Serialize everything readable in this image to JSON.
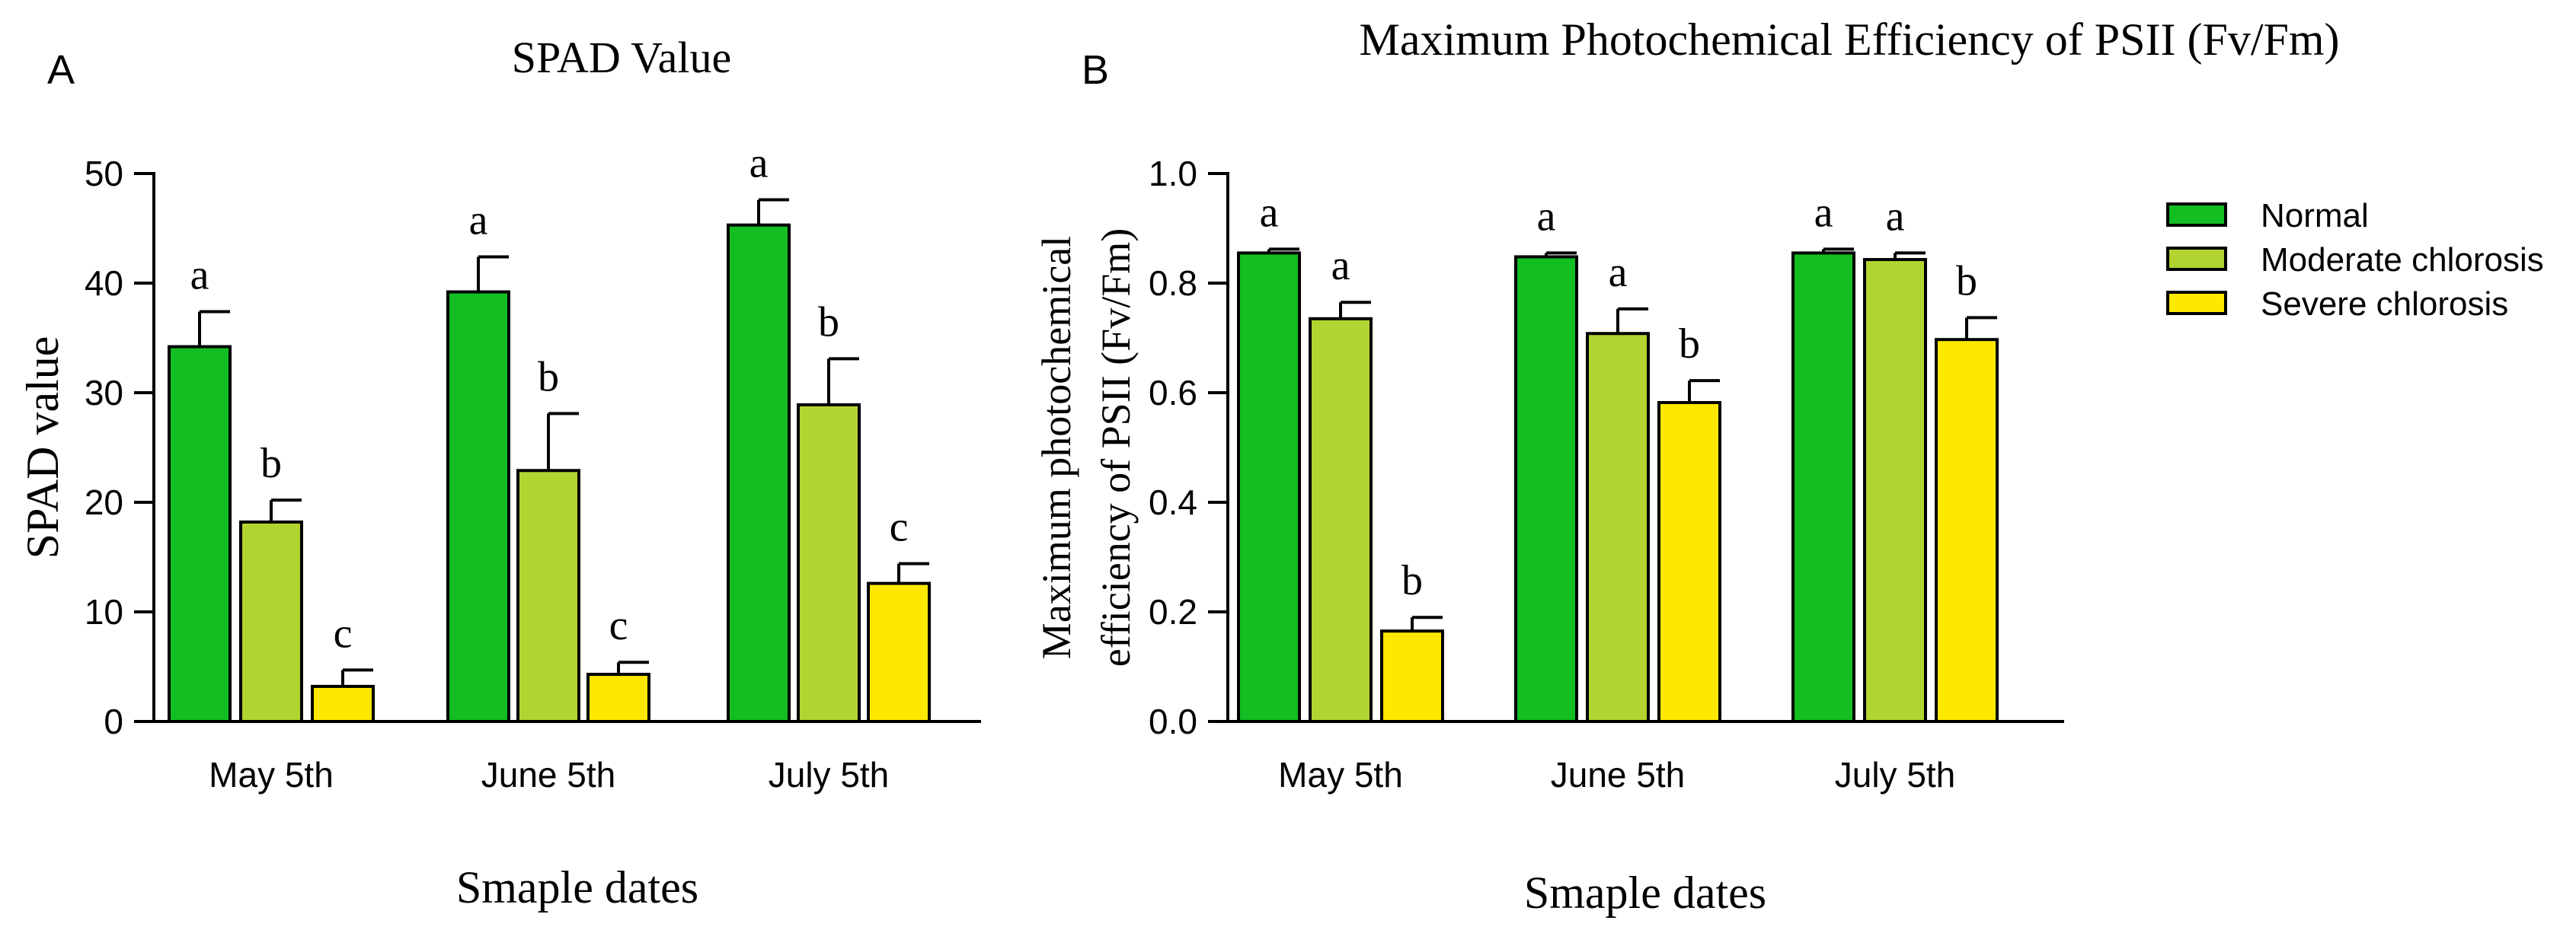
{
  "colors": {
    "normal": "#12be21",
    "moderate": "#b2d431",
    "severe": "#ffe800",
    "axis": "#000000"
  },
  "legend": {
    "items": [
      {
        "label": "Normal",
        "color": "#12be21"
      },
      {
        "label": "Moderate chlorosis",
        "color": "#b2d431"
      },
      {
        "label": "Severe chlorosis",
        "color": "#ffe800"
      }
    ]
  },
  "chart_data": [
    {
      "panel_label": "A",
      "type": "bar",
      "title": "SPAD Value",
      "xlabel": "Smaple dates",
      "ylabel": "SPAD value",
      "categories": [
        "May 5th",
        "June 5th",
        "July 5th"
      ],
      "ylim": [
        0,
        50
      ],
      "yticks": [
        0,
        10,
        20,
        30,
        40,
        50
      ],
      "ytick_labels": [
        "0",
        "10",
        "20",
        "30",
        "40",
        "50"
      ],
      "series": [
        {
          "name": "Normal",
          "values": [
            34.2,
            39.2,
            45.3
          ],
          "errors": [
            3.2,
            3.2,
            2.3
          ],
          "letters": [
            "a",
            "a",
            "a"
          ]
        },
        {
          "name": "Moderate chlorosis",
          "values": [
            18.2,
            22.9,
            28.9
          ],
          "errors": [
            2.0,
            5.2,
            4.2
          ],
          "letters": [
            "b",
            "b",
            "b"
          ]
        },
        {
          "name": "Severe chlorosis",
          "values": [
            3.2,
            4.3,
            12.6
          ],
          "errors": [
            1.5,
            1.1,
            1.8
          ],
          "letters": [
            "c",
            "c",
            "c"
          ]
        }
      ]
    },
    {
      "panel_label": "B",
      "type": "bar",
      "title": "Maximum Photochemical Efficiency of PSII (Fv/Fm)",
      "xlabel": "Smaple dates",
      "ylabel_lines": [
        "Maximum photochemical",
        "efficiency of PSII (Fv/Fm)"
      ],
      "categories": [
        "May 5th",
        "June 5th",
        "July 5th"
      ],
      "ylim": [
        0,
        1.0
      ],
      "yticks": [
        0,
        0.2,
        0.4,
        0.6,
        0.8,
        1.0
      ],
      "ytick_labels": [
        "0.0",
        "0.2",
        "0.4",
        "0.6",
        "0.8",
        "1.0"
      ],
      "series": [
        {
          "name": "Normal",
          "values": [
            0.855,
            0.848,
            0.855
          ],
          "errors": [
            0.007,
            0.007,
            0.007
          ],
          "letters": [
            "a",
            "a",
            "a"
          ]
        },
        {
          "name": "Moderate chlorosis",
          "values": [
            0.735,
            0.708,
            0.843
          ],
          "errors": [
            0.03,
            0.045,
            0.012
          ],
          "letters": [
            "a",
            "a",
            "a"
          ]
        },
        {
          "name": "Severe chlorosis",
          "values": [
            0.165,
            0.582,
            0.697
          ],
          "errors": [
            0.025,
            0.04,
            0.04
          ],
          "letters": [
            "b",
            "b",
            "b"
          ]
        }
      ]
    }
  ]
}
